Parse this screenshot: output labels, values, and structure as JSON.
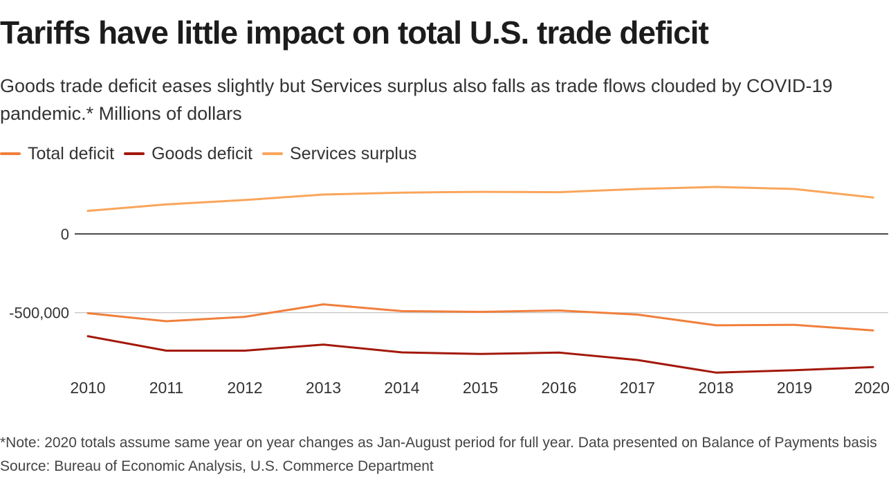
{
  "header": {
    "title": "Tariffs have little impact on total U.S. trade deficit",
    "subtitle": "Goods trade deficit eases slightly but Services surplus also falls as trade flows clouded by COVID-19 pandemic.* Millions of dollars"
  },
  "footer": {
    "note": "*Note: 2020 totals assume same year on year changes as Jan-August period for full year. Data presented on Balance of Payments basis",
    "source": "Source: Bureau of Economic Analysis, U.S. Commerce Department"
  },
  "colors": {
    "total": "#f07f3c",
    "goods": "#a3180a",
    "services": "#f9a55b",
    "zero_line": "#111111",
    "grid": "#bbbbbb",
    "text": "#333333"
  },
  "chart_data": {
    "type": "line",
    "title": "Tariffs have little impact on total U.S. trade deficit",
    "xlabel": "",
    "ylabel": "Millions of dollars",
    "x": [
      2010,
      2011,
      2012,
      2013,
      2014,
      2015,
      2016,
      2017,
      2018,
      2019,
      2020
    ],
    "x_tick_labels": [
      "2010",
      "2011",
      "2012",
      "2013",
      "2014",
      "2015",
      "2016",
      "2017",
      "2018",
      "2019",
      "2020"
    ],
    "y_ticks": [
      0,
      -500000
    ],
    "y_tick_labels": [
      "0",
      "-500,000"
    ],
    "ylim": [
      -910000,
      430000
    ],
    "legend_position": "top-left",
    "series": [
      {
        "key": "total",
        "name": "Total deficit",
        "values": [
          -503000,
          -554000,
          -526000,
          -447000,
          -490000,
          -495000,
          -486000,
          -512000,
          -580000,
          -577000,
          -612000
        ]
      },
      {
        "key": "goods",
        "name": "Goods deficit",
        "values": [
          -649000,
          -741000,
          -741000,
          -702000,
          -752000,
          -762000,
          -753000,
          -800000,
          -880000,
          -865000,
          -845000
        ]
      },
      {
        "key": "services",
        "name": "Services surplus",
        "values": [
          146000,
          187000,
          215000,
          250000,
          262000,
          267000,
          265000,
          285000,
          298000,
          285000,
          231000
        ]
      }
    ]
  }
}
